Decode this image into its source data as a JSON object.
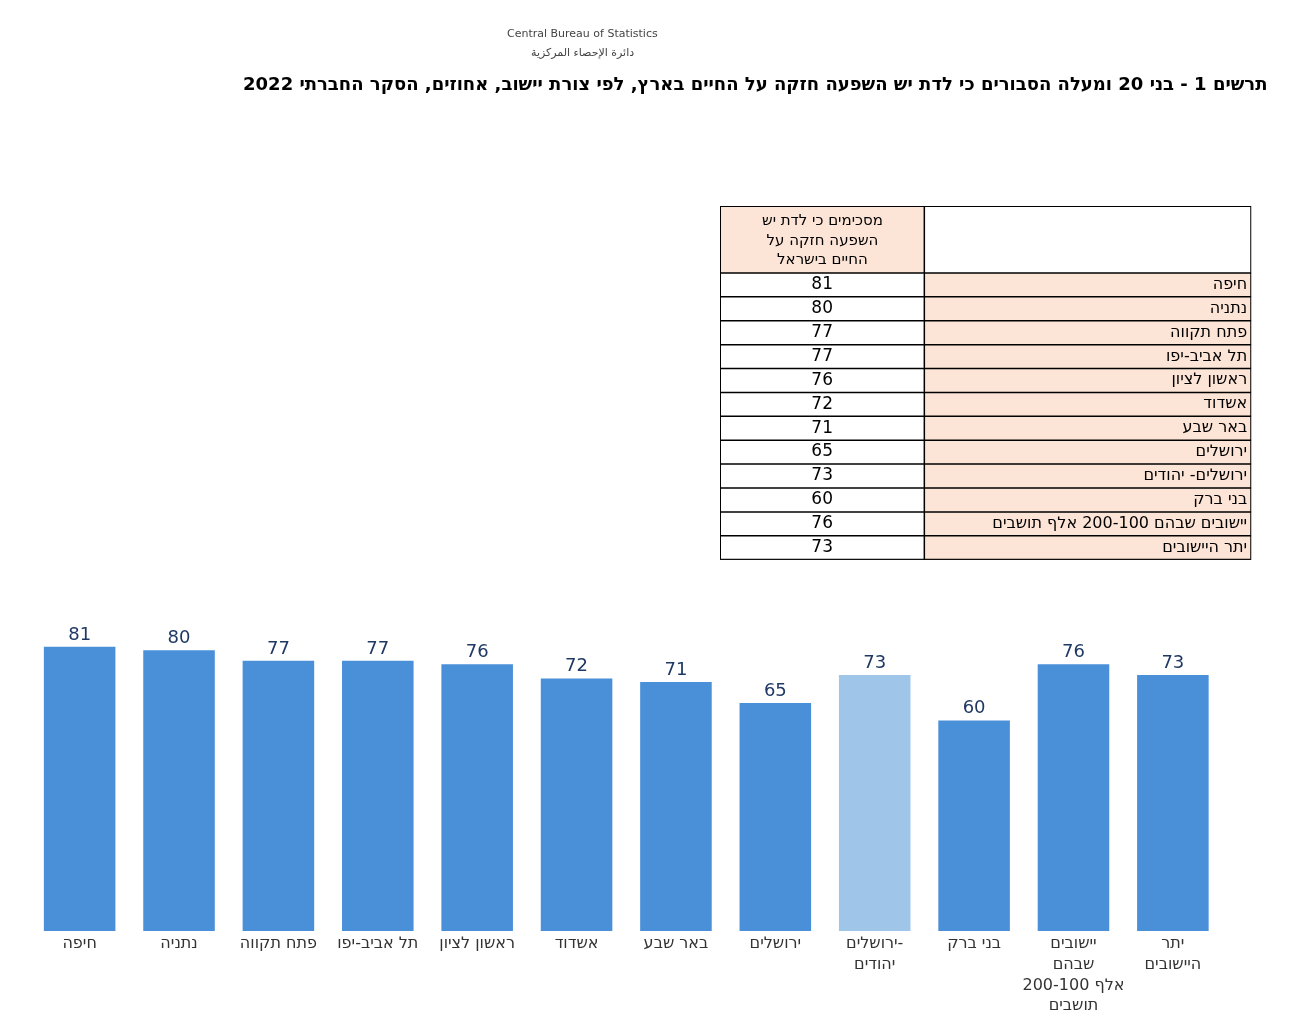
{
  "chart_data": [
    {
      "type": "other",
      "title": "תרשים 1 - בני 20 ומעלה הסבורים כי לדת יש השפעה חזקה על החיים בארץ, לפי צורת יישוב, אחוזים, הסקר החברתי 2022",
      "categories": [
        "חיפה",
        "נתניה",
        "פתח תקווה",
        "תל אביב-יפו",
        "ראשון לציון",
        "אשדוד",
        "באר שבע",
        "ירושלים",
        "ירושלים- יהודים",
        "בני ברק",
        "יישובים שבהם 200-100 אלף תושבים",
        "יתר היישובים"
      ],
      "values": [
        81,
        80,
        77,
        77,
        76,
        72,
        71,
        65,
        73,
        60,
        76,
        73
      ],
      "data_labels": true,
      "annotations": [
        "Central Bureau of Statistics",
        "دائرة الإحصاء المركزية",
        "מסכימים כי לדת יש השפעה חזקה על החיים בישראל"
      ]
    },
    {
      "type": "bar",
      "categories": [
        "חיפה",
        "נתניה",
        "פתח תקווה",
        "תל אביב-יפו",
        "ראשון לציון",
        "אשדוד",
        "באר שבע",
        "ירושלים",
        "ירושלים- יהודים",
        "בני ברק",
        "יישובים שבהם 200-100 אלף תושבים",
        "יתר היישובים"
      ],
      "values": [
        81,
        80,
        77,
        77,
        76,
        72,
        71,
        65,
        73,
        60,
        76,
        73
      ],
      "colors": [
        "#4a90d9",
        "#4a90d9",
        "#4a90d9",
        "#4a90d9",
        "#4a90d9",
        "#4a90d9",
        "#4a90d9",
        "#4a90d9",
        "#9fc5e8",
        "#4a90d9",
        "#4a90d9",
        "#4a90d9"
      ],
      "data_labels": true
    }
  ]
}
